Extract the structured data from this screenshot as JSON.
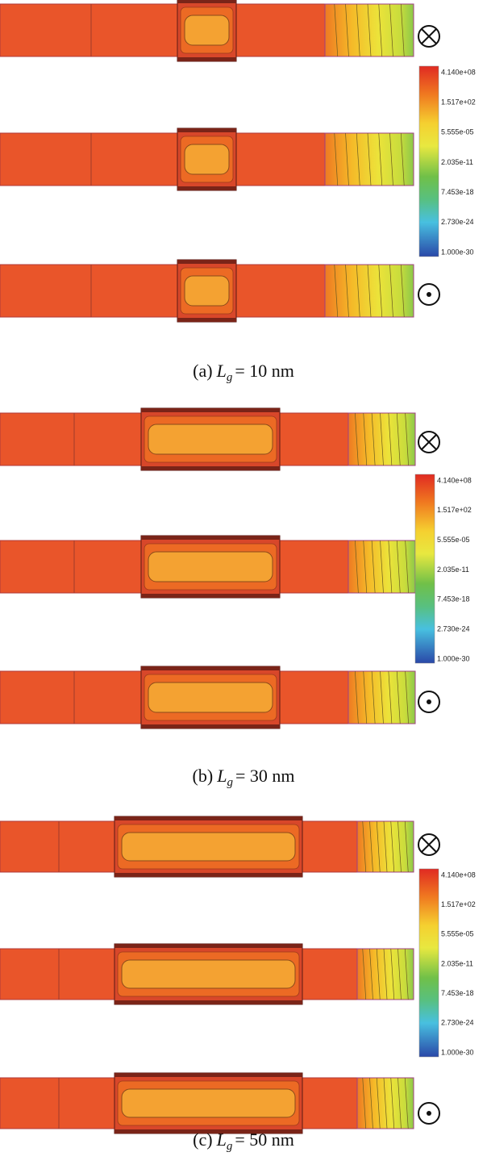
{
  "panels": [
    {
      "caption": {
        "label": "(a)",
        "var": "L",
        "sub": "g",
        "value": "= 10 nm"
      }
    },
    {
      "caption": {
        "label": "(b)",
        "var": "L",
        "sub": "g",
        "value": "= 30 nm"
      }
    },
    {
      "caption": {
        "label": "(c)",
        "var": "L",
        "sub": "g",
        "value": "= 50 nm"
      }
    }
  ],
  "colorbar": {
    "labels": [
      "4.140e+08",
      "1.517e+02",
      "5.555e-05",
      "2.035e-11",
      "7.453e-18",
      "2.730e-24",
      "1.000e-30"
    ]
  }
}
